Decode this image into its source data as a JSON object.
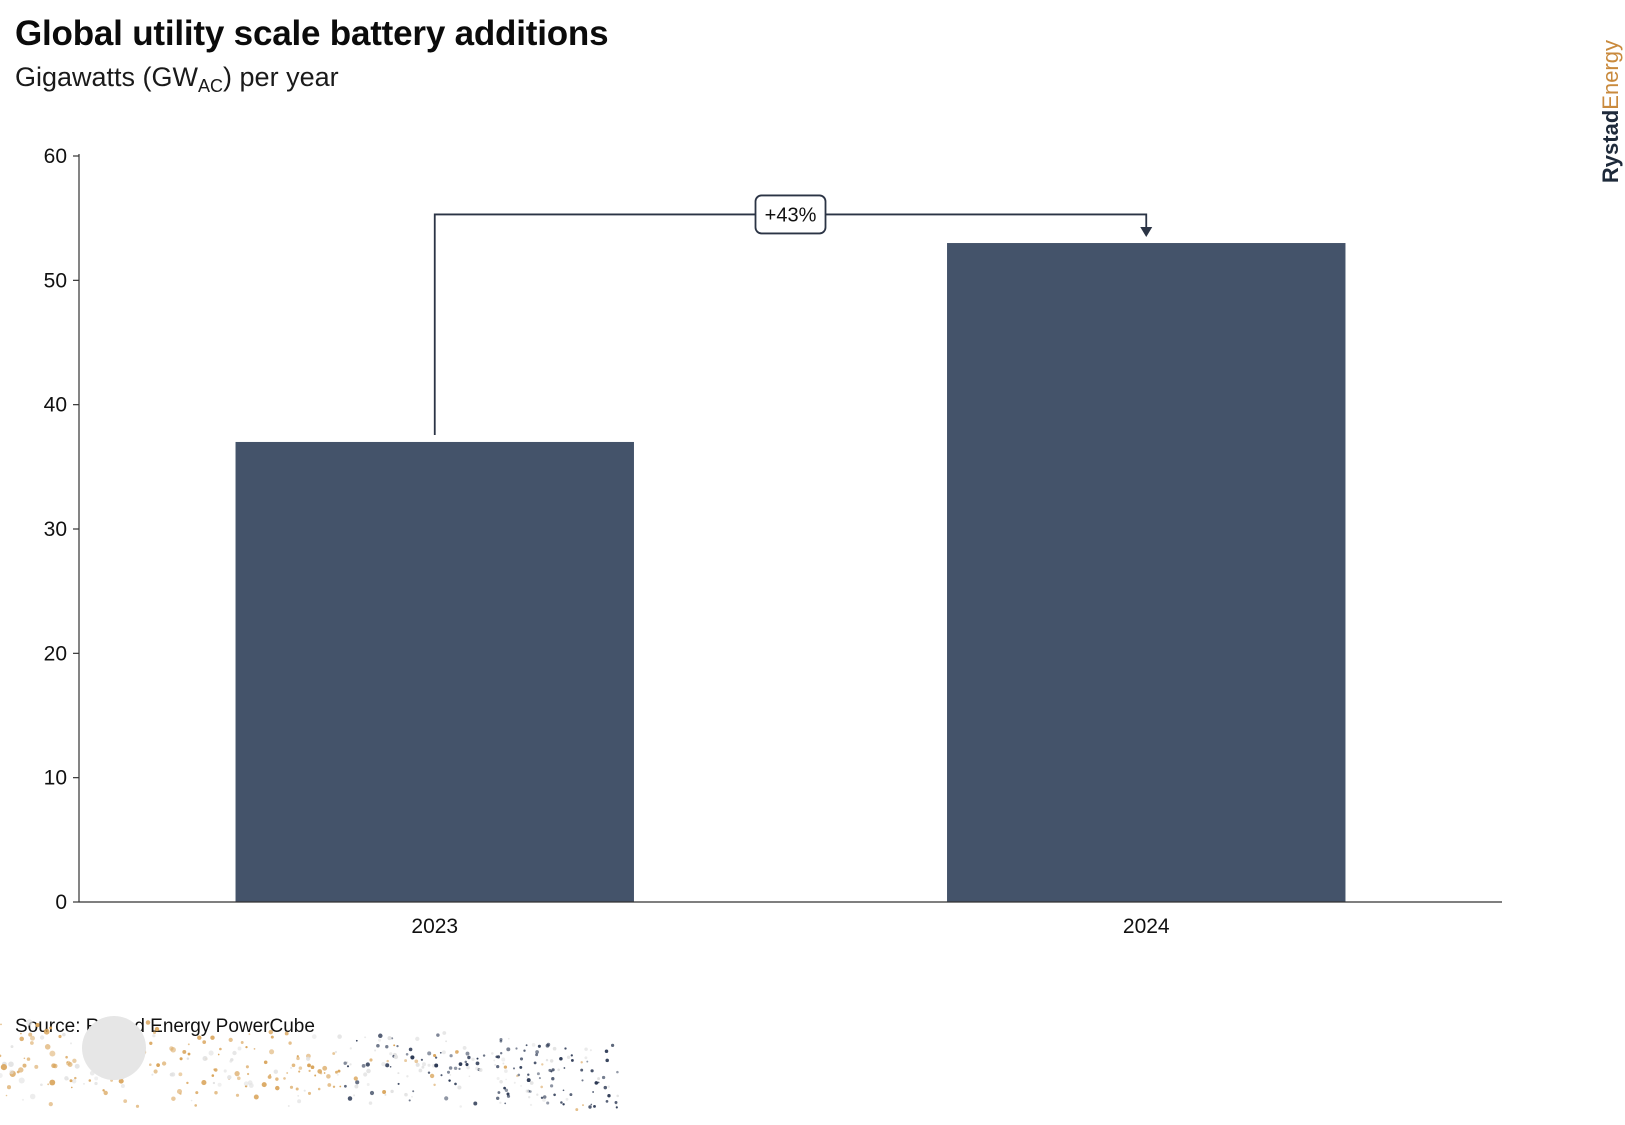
{
  "header": {
    "title": "Global utility scale battery additions",
    "subtitle_main": "Gigawatts (GW",
    "subtitle_sub": "AC",
    "subtitle_end": ") per year"
  },
  "brand": {
    "part1": "Rystad",
    "part2": "Energy"
  },
  "source": "Source: Rystad Energy PowerCube",
  "colors": {
    "bar": "#44536a",
    "axis": "#333333",
    "brand_accent": "#c98a3d",
    "brand_dark": "#1e2a3a"
  },
  "chart_data": {
    "type": "bar",
    "title": "Global utility scale battery additions",
    "ylabel": "Gigawatts (GWAC) per year",
    "categories": [
      "2023",
      "2024"
    ],
    "values": [
      37,
      53
    ],
    "ylim": [
      0,
      60
    ],
    "yticks": [
      0,
      10,
      20,
      30,
      40,
      50,
      60
    ],
    "grid": false,
    "annotation": {
      "label": "+43%",
      "from": "2023",
      "to": "2024",
      "level": 55.3
    }
  }
}
